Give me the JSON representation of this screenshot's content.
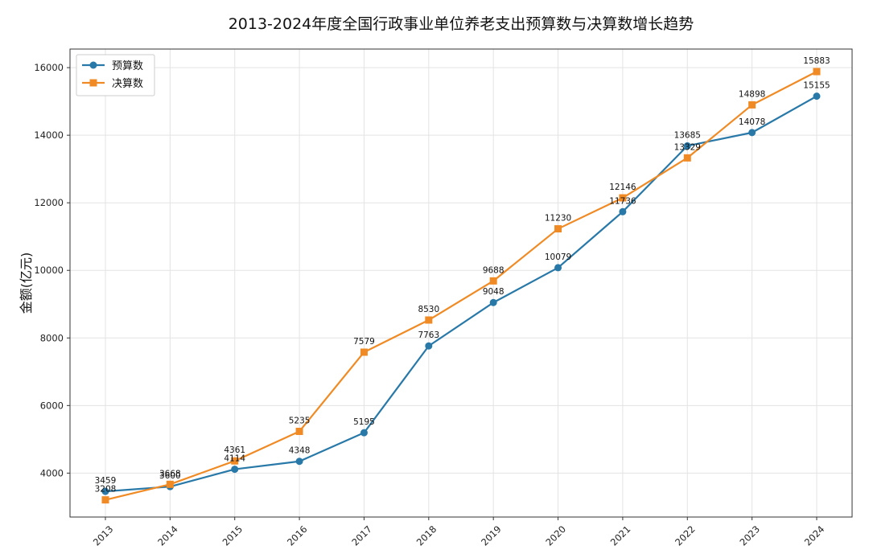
{
  "chart_data": {
    "type": "line",
    "title": "2013-2024年度全国行政事业单位养老支出预算数与决算数增长趋势",
    "xlabel": "",
    "ylabel": "金额(亿元)",
    "categories": [
      "2013",
      "2014",
      "2015",
      "2016",
      "2017",
      "2018",
      "2019",
      "2020",
      "2021",
      "2022",
      "2023",
      "2024"
    ],
    "yticks": [
      4000,
      6000,
      8000,
      10000,
      12000,
      14000,
      16000
    ],
    "ylim": [
      2700,
      16550
    ],
    "grid": true,
    "legend_position": "top-left",
    "series": [
      {
        "name": "预算数",
        "color": "#2878a8",
        "marker": "circle",
        "values": [
          3459,
          3600,
          4114,
          4348,
          5195,
          7763,
          9048,
          10079,
          11736,
          13685,
          14078,
          15155
        ]
      },
      {
        "name": "决算数",
        "color": "#f08a24",
        "marker": "square",
        "values": [
          3208,
          3668,
          4361,
          5235,
          7579,
          8530,
          9688,
          11230,
          12146,
          13329,
          14898,
          15883
        ]
      }
    ]
  }
}
